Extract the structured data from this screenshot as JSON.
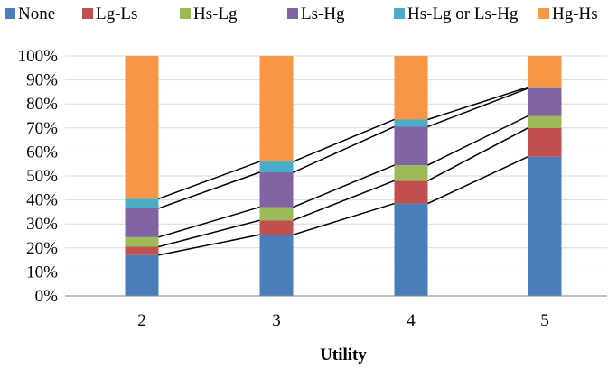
{
  "chart_data": {
    "type": "bar",
    "stacked": true,
    "percent": true,
    "xlabel": "Utility",
    "ylabel": "",
    "title": "",
    "categories": [
      "2",
      "3",
      "4",
      "5"
    ],
    "ylim": [
      0,
      100
    ],
    "y_ticks": [
      "0%",
      "10%",
      "20%",
      "30%",
      "40%",
      "50%",
      "60%",
      "70%",
      "80%",
      "90%",
      "100%"
    ],
    "legend_position": "top",
    "connector_lines": true,
    "series": [
      {
        "name": "None",
        "color": "#4a7ebb",
        "values": [
          17,
          25.5,
          38.5,
          58
        ]
      },
      {
        "name": "Lg-Ls",
        "color": "#c0504d",
        "values": [
          3.5,
          6,
          9.5,
          12
        ]
      },
      {
        "name": "Hs-Lg",
        "color": "#9bbb59",
        "values": [
          4,
          5.5,
          6.5,
          5
        ]
      },
      {
        "name": "Ls-Hg",
        "color": "#8064a2",
        "values": [
          12,
          14.5,
          16,
          11.5
        ]
      },
      {
        "name": "Hs-Lg or Ls-Hg",
        "color": "#4bacc6",
        "values": [
          4,
          4.5,
          3,
          0.5
        ]
      },
      {
        "name": "Hg-Hs",
        "color": "#f79646",
        "values": [
          59.5,
          44,
          26.5,
          13
        ]
      }
    ]
  }
}
